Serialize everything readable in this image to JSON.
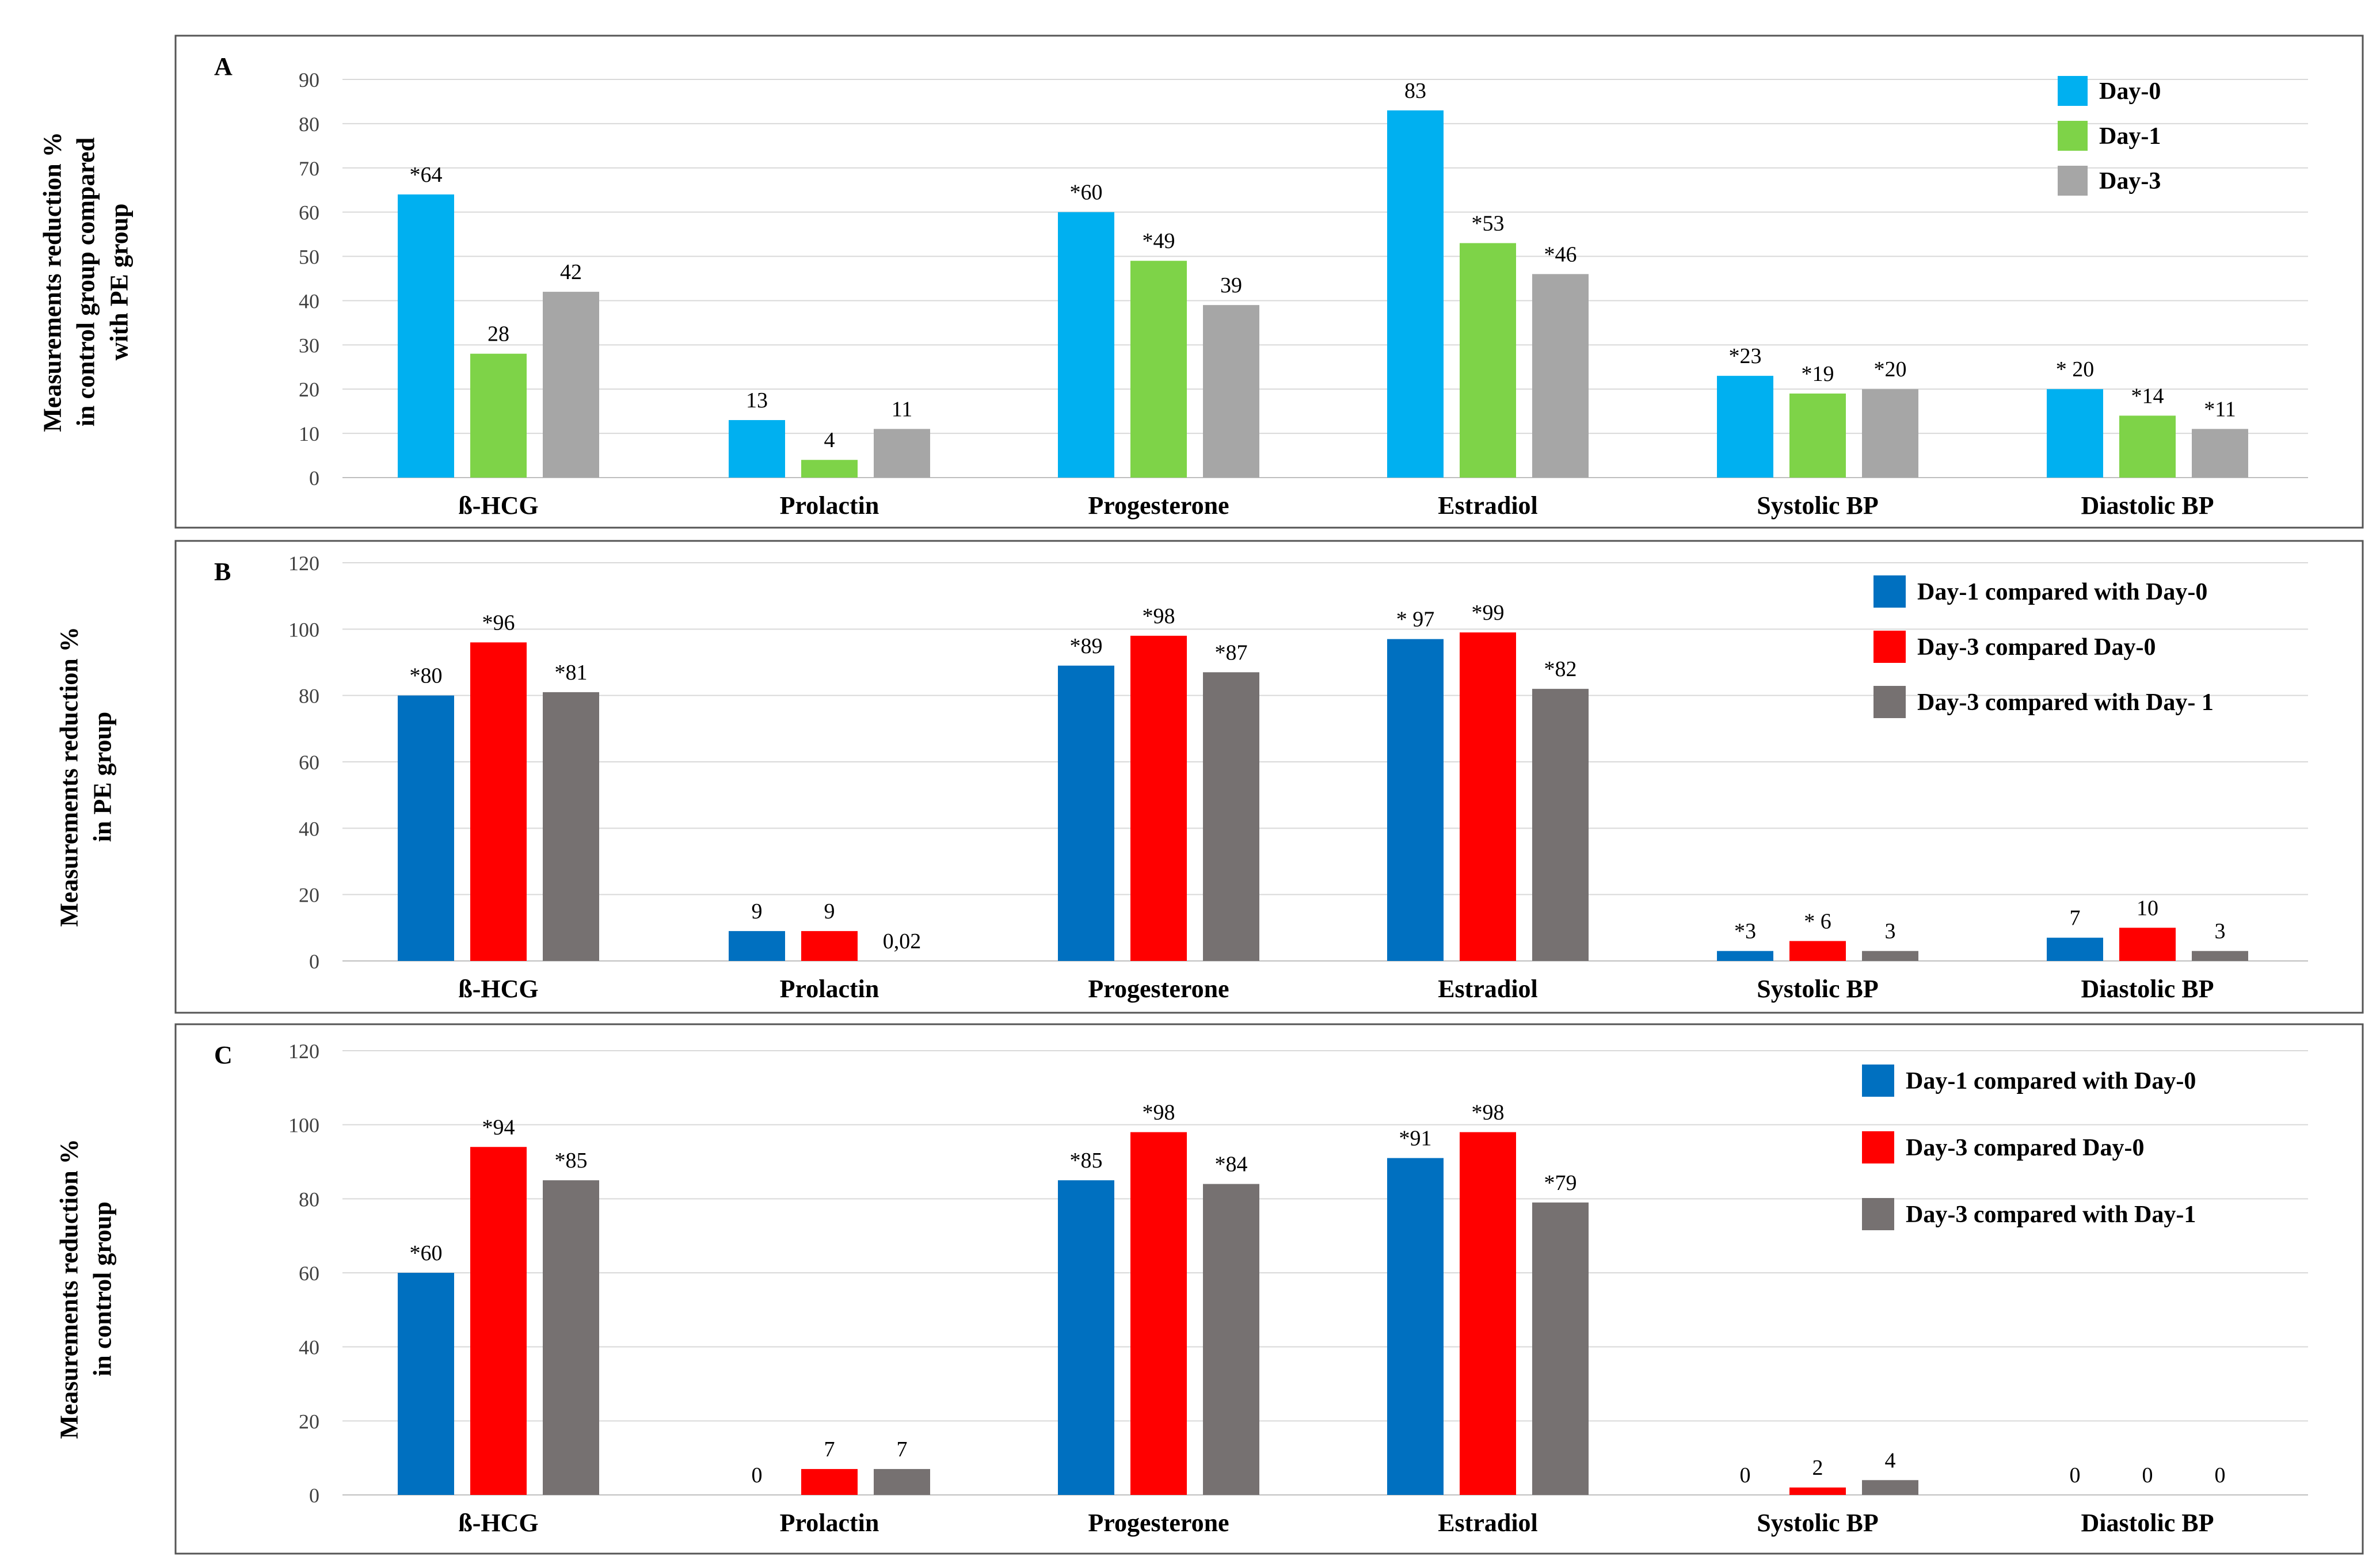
{
  "panels": [
    {
      "letter": "A",
      "y_title_lines": [
        "Measurements  reduction  %",
        "in control group compared",
        "with PE group"
      ],
      "legend": [
        "Day-0",
        "Day-1",
        "Day-3"
      ],
      "colors": [
        "#00b0f0",
        "#7ed348",
        "#a6a6a6"
      ]
    },
    {
      "letter": "B",
      "y_title_lines": [
        "Measurements  reduction  %",
        "in PE group"
      ],
      "legend": [
        "Day-1 compared with Day-0",
        "Day-3 compared Day-0",
        "Day-3 compared with Day- 1"
      ],
      "colors": [
        "#0070c0",
        "#ff0000",
        "#767171"
      ]
    },
    {
      "letter": "C",
      "y_title_lines": [
        "Measurements  reduction  %",
        "in control group"
      ],
      "legend": [
        "Day-1 compared with Day-0",
        "Day-3 compared Day-0",
        "Day-3 compared with Day-1"
      ],
      "colors": [
        "#0070c0",
        "#ff0000",
        "#767171"
      ]
    }
  ],
  "chart_data": [
    {
      "type": "bar",
      "title": "A",
      "ylabel": "Measurements reduction % in control group compared with PE group",
      "categories": [
        "ß-HCG",
        "Prolactin",
        "Progesterone",
        "Estradiol",
        "Systolic BP",
        "Diastolic BP"
      ],
      "ylim": [
        0,
        90
      ],
      "yticks": [
        0,
        10,
        20,
        30,
        40,
        50,
        60,
        70,
        80,
        90
      ],
      "series": [
        {
          "name": "Day-0",
          "values": [
            64,
            13,
            60,
            83,
            23,
            20
          ],
          "labels": [
            "*64",
            "13",
            "*60",
            "83",
            "*23",
            "* 20"
          ]
        },
        {
          "name": "Day-1",
          "values": [
            28,
            4,
            49,
            53,
            19,
            14
          ],
          "labels": [
            "28",
            "4",
            "*49",
            "*53",
            "*19",
            "*14"
          ]
        },
        {
          "name": "Day-3",
          "values": [
            42,
            11,
            39,
            46,
            20,
            11
          ],
          "labels": [
            "42",
            "11",
            "39",
            "*46",
            "*20",
            "*11"
          ]
        }
      ]
    },
    {
      "type": "bar",
      "title": "B",
      "ylabel": "Measurements reduction % in PE group",
      "categories": [
        "ß-HCG",
        "Prolactin",
        "Progesterone",
        "Estradiol",
        "Systolic BP",
        "Diastolic BP"
      ],
      "ylim": [
        0,
        120
      ],
      "yticks": [
        0,
        20,
        40,
        60,
        80,
        100,
        120
      ],
      "series": [
        {
          "name": "Day-1 compared with Day-0",
          "values": [
            80,
            9,
            89,
            97,
            3,
            7
          ],
          "labels": [
            "*80",
            "9",
            "*89",
            "* 97",
            "*3",
            "7"
          ]
        },
        {
          "name": "Day-3 compared Day-0",
          "values": [
            96,
            9,
            98,
            99,
            6,
            10
          ],
          "labels": [
            "*96",
            "9",
            "*98",
            "*99",
            "* 6",
            "10"
          ]
        },
        {
          "name": "Day-3 compared with Day- 1",
          "values": [
            81,
            0.02,
            87,
            82,
            3,
            3
          ],
          "labels": [
            "*81",
            "0,02",
            "*87",
            "*82",
            "3",
            "3"
          ]
        }
      ]
    },
    {
      "type": "bar",
      "title": "C",
      "ylabel": "Measurements reduction % in control group",
      "categories": [
        "ß-HCG",
        "Prolactin",
        "Progesterone",
        "Estradiol",
        "Systolic BP",
        "Diastolic BP"
      ],
      "ylim": [
        0,
        120
      ],
      "yticks": [
        0,
        20,
        40,
        60,
        80,
        100,
        120
      ],
      "series": [
        {
          "name": "Day-1 compared with Day-0",
          "values": [
            60,
            0,
            85,
            91,
            0,
            0
          ],
          "labels": [
            "*60",
            "0",
            "*85",
            "*91",
            "0",
            "0"
          ]
        },
        {
          "name": "Day-3 compared Day-0",
          "values": [
            94,
            7,
            98,
            98,
            2,
            0
          ],
          "labels": [
            "*94",
            "7",
            "*98",
            "*98",
            "2",
            "0"
          ]
        },
        {
          "name": "Day-3 compared with Day-1",
          "values": [
            85,
            7,
            84,
            79,
            4,
            0
          ],
          "labels": [
            "*85",
            "7",
            "*84",
            "*79",
            "4",
            "0"
          ]
        }
      ]
    }
  ]
}
